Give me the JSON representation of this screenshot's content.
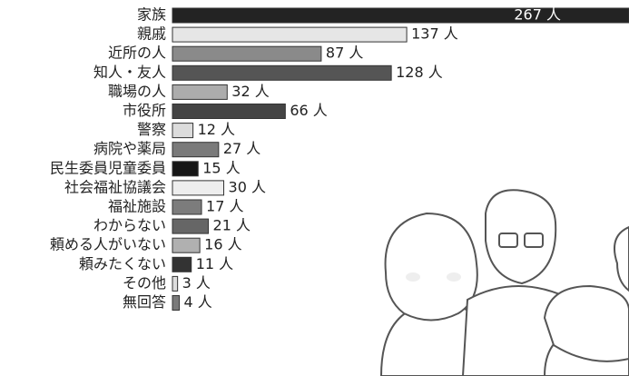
{
  "chart_data": {
    "type": "bar",
    "orientation": "horizontal",
    "categories": [
      "家族",
      "親戚",
      "近所の人",
      "知人・友人",
      "職場の人",
      "市役所",
      "警察",
      "病院や薬局",
      "民生委員児童委員",
      "社会福祉協議会",
      "福祉施設",
      "わからない",
      "頼める人がいない",
      "頼みたくない",
      "その他",
      "無回答"
    ],
    "values": [
      267,
      137,
      87,
      128,
      32,
      66,
      12,
      27,
      15,
      30,
      17,
      21,
      16,
      11,
      3,
      4
    ],
    "value_labels": [
      "267 人",
      "137 人",
      "87 人",
      "128 人",
      "32 人",
      "66 人",
      "12 人",
      "27 人",
      "15 人",
      "30 人",
      "17 人",
      "21 人",
      "16 人",
      "11 人",
      "3 人",
      "4 人"
    ],
    "colors": [
      "#232323",
      "#e6e6e6",
      "#8a8a8a",
      "#555555",
      "#acacac",
      "#444444",
      "#dcdcdc",
      "#7a7a7a",
      "#161616",
      "#eeeeee",
      "#7c7c7c",
      "#666666",
      "#b0b0b0",
      "#333333",
      "#dddddd",
      "#7a7a7a"
    ]
  }
}
